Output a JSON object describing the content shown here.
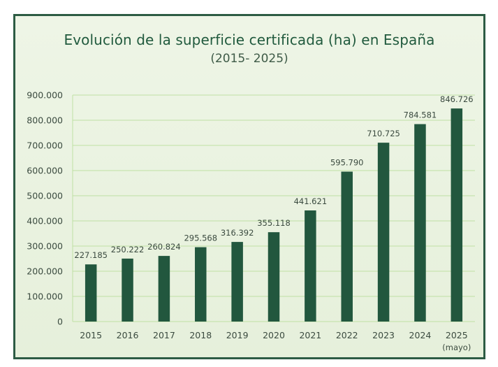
{
  "chart_data": {
    "type": "bar",
    "title": "Evolución de la superficie certificada (ha) en España",
    "subtitle": "(2015- 2025)",
    "categories": [
      "2015",
      "2016",
      "2017",
      "2018",
      "2019",
      "2020",
      "2021",
      "2022",
      "2023",
      "2024",
      "2025"
    ],
    "category_sublabels": [
      "",
      "",
      "",
      "",
      "",
      "",
      "",
      "",
      "",
      "",
      "(mayo)"
    ],
    "values": [
      227185,
      250222,
      260824,
      295568,
      316392,
      355118,
      441621,
      595790,
      710725,
      784581,
      846726
    ],
    "value_labels": [
      "227.185",
      "250.222",
      "260.824",
      "295.568",
      "316.392",
      "355.118",
      "441.621",
      "595.790",
      "710.725",
      "784.581",
      "846.726"
    ],
    "yticks": [
      0,
      100000,
      200000,
      300000,
      400000,
      500000,
      600000,
      700000,
      800000,
      900000
    ],
    "ytick_labels": [
      "0",
      "100.000",
      "200.000",
      "300.000",
      "400.000",
      "500.000",
      "600.000",
      "700.000",
      "800.000",
      "900.000"
    ],
    "ylim": [
      0,
      900000
    ],
    "xlabel": "",
    "ylabel": "",
    "grid": true,
    "legend": "none",
    "colors": {
      "bar": "#22573e",
      "grid": "#bfe0a4",
      "text": "#3a4a3f",
      "title": "#215a3e",
      "border": "#2d5c44",
      "background": "#eaf2e0"
    }
  }
}
